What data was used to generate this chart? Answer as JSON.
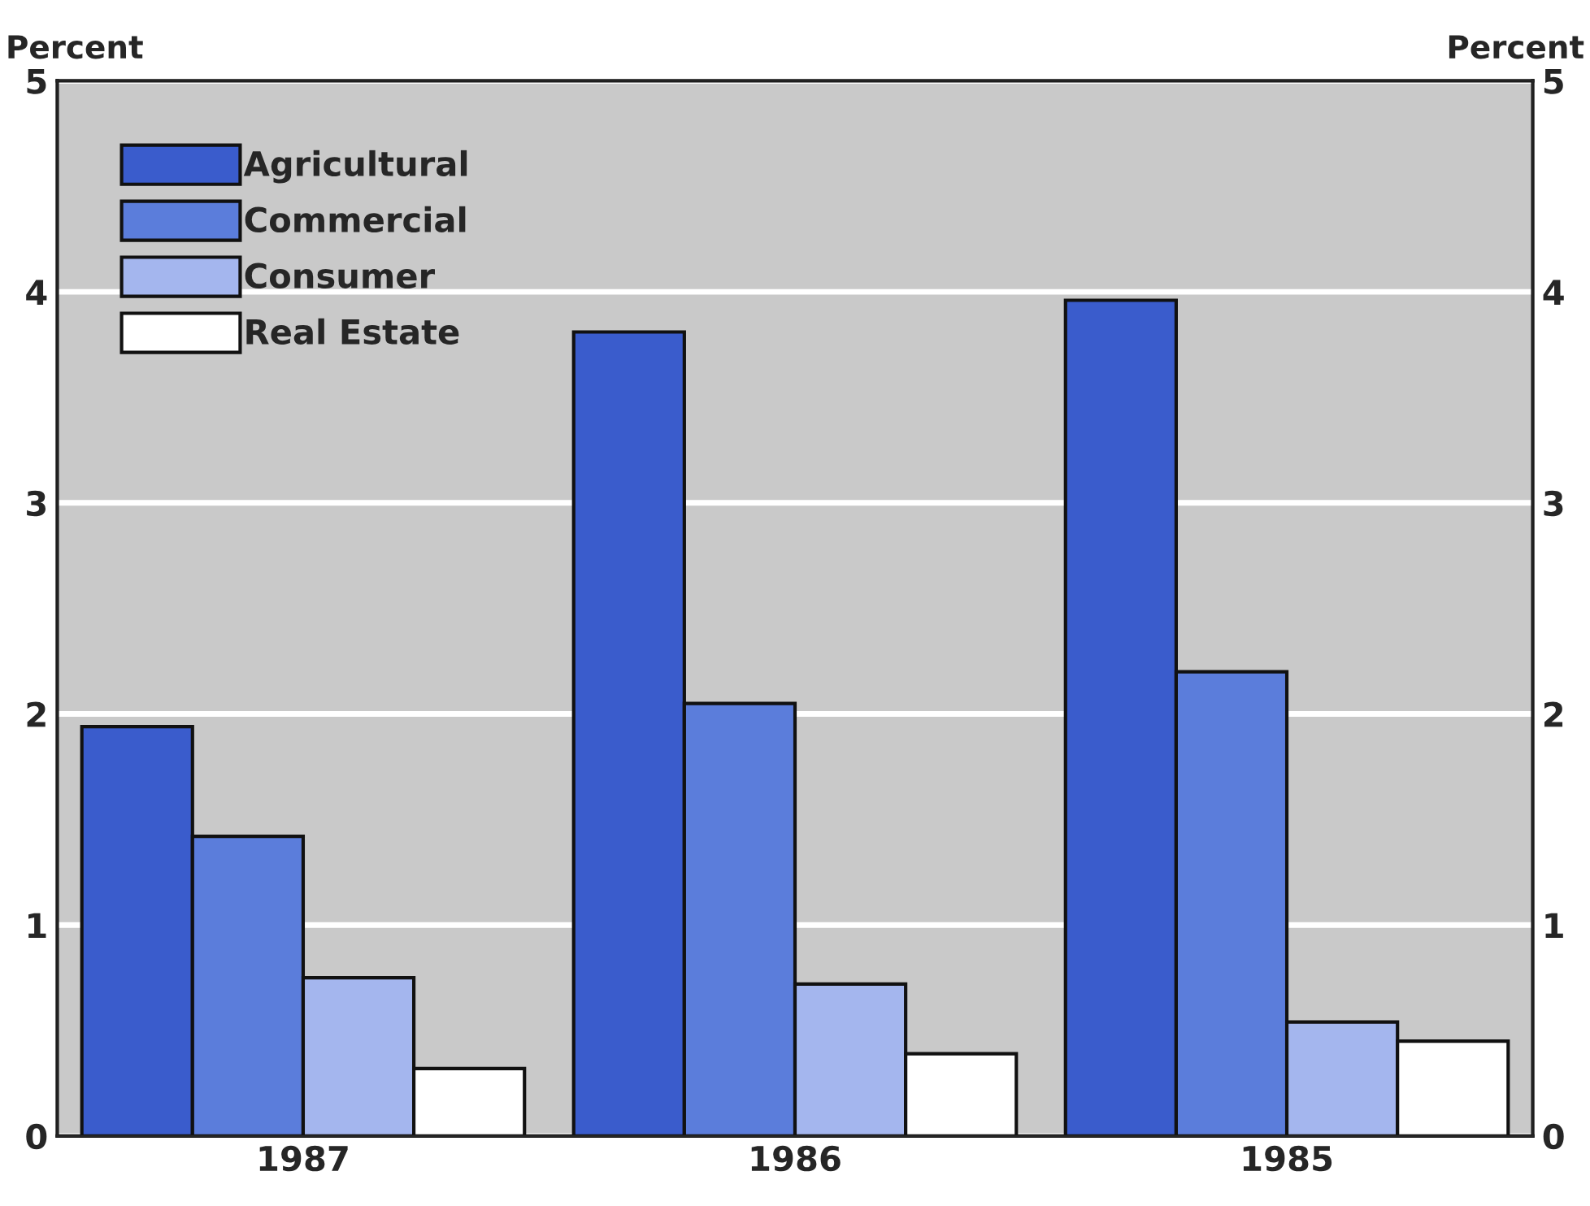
{
  "chart_data": {
    "type": "bar",
    "ylabel": "Percent",
    "y2label": "Percent",
    "categories": [
      "1987",
      "1986",
      "1985"
    ],
    "series": [
      {
        "name": "Agricultural",
        "color": "#3a5ccc",
        "values": [
          1.94,
          3.81,
          3.96
        ]
      },
      {
        "name": "Commercial",
        "color": "#5b7ddb",
        "values": [
          1.42,
          2.05,
          2.2
        ]
      },
      {
        "name": "Consumer",
        "color": "#a4b6ee",
        "values": [
          0.75,
          0.72,
          0.54
        ]
      },
      {
        "name": "Real Estate",
        "color": "#ffffff",
        "values": [
          0.32,
          0.39,
          0.45
        ]
      }
    ],
    "ylim": [
      0,
      5
    ],
    "yticks": [
      0,
      1,
      2,
      3,
      4,
      5
    ],
    "y2lim": [
      0,
      5
    ],
    "y2ticks": [
      0,
      1,
      2,
      3,
      4,
      5
    ],
    "grid": "y",
    "legend": "top left"
  }
}
